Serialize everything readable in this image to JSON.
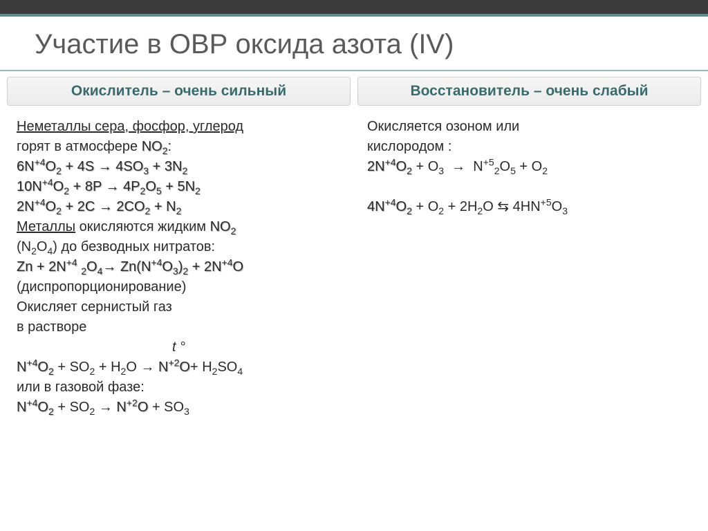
{
  "title": "Участие в ОВР оксида азота (IV)",
  "colors": {
    "title_text": "#5a5a5a",
    "title_underline": "#9bb8b9",
    "topbar_bg": "#3b3b3b",
    "topbar_accent": "#5f8a8b",
    "header_text": "#3a6b6c",
    "header_bg_top": "#f6f6f6",
    "header_bg_bottom": "#ebebeb",
    "header_border": "#cfcfcf",
    "body_text": "#2a2a2a"
  },
  "typography": {
    "title_fontsize": 40,
    "header_fontsize": 21,
    "body_fontsize": 20,
    "font_family": "Arial"
  },
  "left": {
    "header": "Окислитель – очень сильный",
    "intro_plain": "Неметаллы сера, фосфор, углерод",
    "intro_line2_pre": "горят в атмосфере ",
    "intro_line2_formula": "NO₂",
    "intro_line2_post": ":",
    "eq1": "6N⁺⁴O₂ + 4S → 4SO₃ + 3N₂",
    "eq2": "10N⁺⁴O₂ + 8P → 4P₂O₅ + 5N₂",
    "eq3": "2N⁺⁴O₂ + 2C → 2CO₂ + N₂",
    "metals_pre": "Металлы",
    "metals_mid": " окисляются жидким ",
    "metals_formula": "NO₂",
    "metals_line2": "(N₂O₄) до безводных нитратов:",
    "eq4": "Zn + 2N⁺⁴₂O₄ → Zn(N⁺⁴O₃)₂ + 2N⁺⁴O",
    "dispro": "(диспропорционирование)",
    "so2_line1": "Окисляет сернистый газ",
    "so2_line2": "в растворе",
    "t_symbol": "t °",
    "eq5_a": "N⁺⁴O₂",
    "eq5_mid": " + SO₂ + H₂O → ",
    "eq5_b": "N⁺²O",
    "eq5_end": "+ H₂SO₄",
    "gas_phase": "или в газовой фазе:",
    "eq6_a": "N⁺⁴O₂",
    "eq6_mid": " + SO₂ → ",
    "eq6_b": "N⁺²O",
    "eq6_end": " + SO₃"
  },
  "right": {
    "header": "Восстановитель – очень слабый",
    "intro1": "Окисляется озоном или",
    "intro2": "кислородом :",
    "eq1_a": "2N⁺⁴O₂",
    "eq1_mid": " + O₃  →  N⁺⁵₂O₅ + O₂",
    "eq2_a": "4N⁺⁴O₂",
    "eq2_mid": " + O₂ + 2H₂O ⇆ 4HN⁺⁵O₃"
  }
}
